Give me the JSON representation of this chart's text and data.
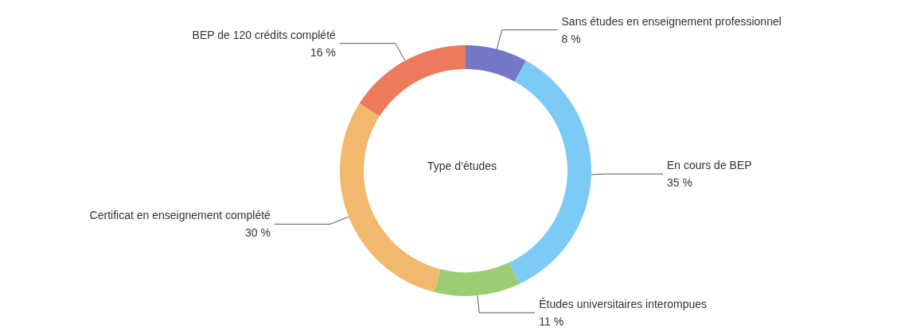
{
  "chart_data": {
    "type": "donut",
    "title": "Type d’études",
    "categories": [
      "Sans études en enseignement professionnel",
      "En cours de BEP",
      "Études universitaires interompues",
      "Certificat en enseignement complété",
      "BEP de 120 crédits complété"
    ],
    "values": [
      8,
      35,
      11,
      30,
      16
    ],
    "value_labels": [
      "8 %",
      "35 %",
      "11 %",
      "30 %",
      "16 %"
    ],
    "colors": [
      "#7378c6",
      "#7ccbf6",
      "#9ccd72",
      "#f2b86d",
      "#ec7a5b"
    ],
    "legend": false
  }
}
